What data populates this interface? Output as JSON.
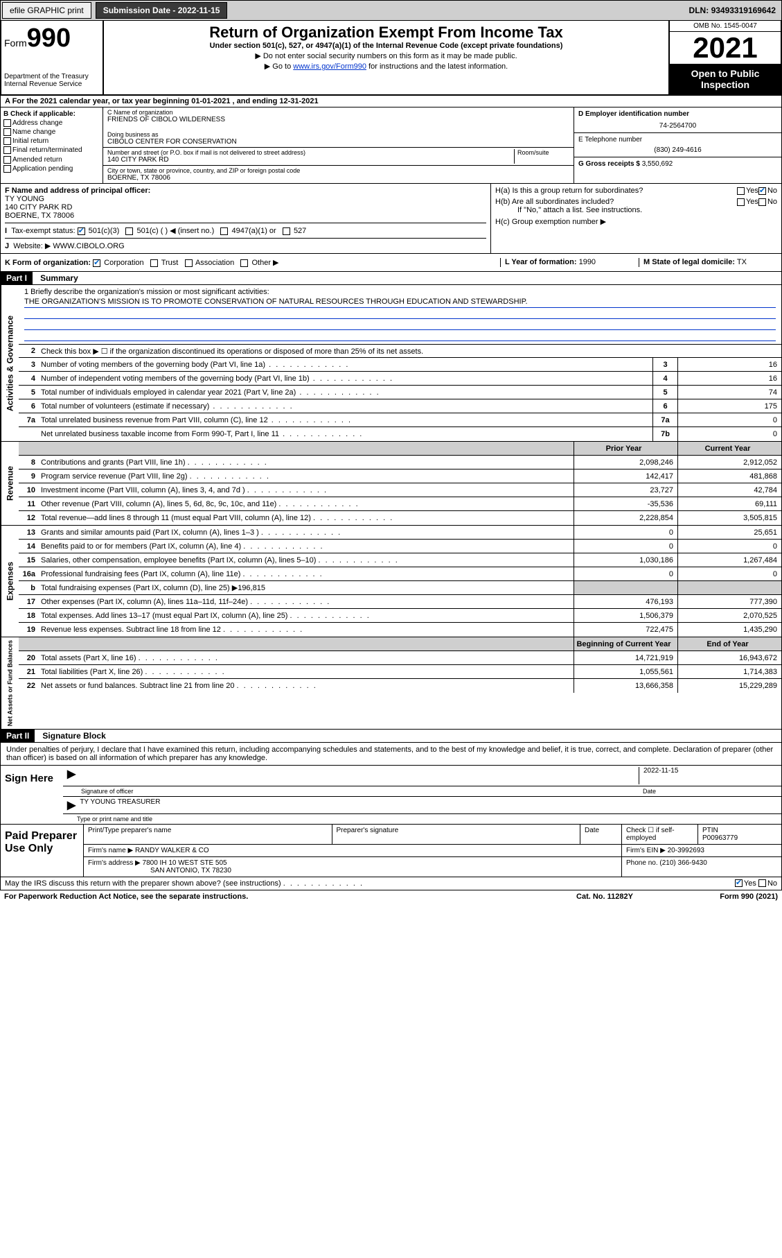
{
  "topbar": {
    "efile": "efile GRAPHIC print",
    "submission_label": "Submission Date",
    "submission_date": "2022-11-15",
    "dln_label": "DLN:",
    "dln": "93493319169642"
  },
  "header": {
    "form_label": "Form",
    "form_num": "990",
    "dept": "Department of the Treasury",
    "irs": "Internal Revenue Service",
    "title": "Return of Organization Exempt From Income Tax",
    "subtitle": "Under section 501(c), 527, or 4947(a)(1) of the Internal Revenue Code (except private foundations)",
    "note1": "▶ Do not enter social security numbers on this form as it may be made public.",
    "note2_pre": "▶ Go to ",
    "note2_link": "www.irs.gov/Form990",
    "note2_post": " for instructions and the latest information.",
    "omb": "OMB No. 1545-0047",
    "year": "2021",
    "open": "Open to Public Inspection"
  },
  "period": {
    "a_label": "A For the 2021 calendar year, or tax year beginning ",
    "begin": "01-01-2021",
    "mid": " , and ending ",
    "end": "12-31-2021"
  },
  "colB": {
    "title": "B Check if applicable:",
    "opts": [
      "Address change",
      "Name change",
      "Initial return",
      "Final return/terminated",
      "Amended return",
      "Application pending"
    ]
  },
  "colC": {
    "name_label": "C Name of organization",
    "name": "FRIENDS OF CIBOLO WILDERNESS",
    "dba_label": "Doing business as",
    "dba": "CIBOLO CENTER FOR CONSERVATION",
    "street_label": "Number and street (or P.O. box if mail is not delivered to street address)",
    "room_label": "Room/suite",
    "street": "140 CITY PARK RD",
    "city_label": "City or town, state or province, country, and ZIP or foreign postal code",
    "city": "BOERNE, TX  78006"
  },
  "colD": {
    "ein_label": "D Employer identification number",
    "ein": "74-2564700",
    "phone_label": "E Telephone number",
    "phone": "(830) 249-4616",
    "gross_label": "G Gross receipts $",
    "gross": "3,550,692"
  },
  "rowF": {
    "f_label": "F Name and address of principal officer:",
    "f_name": "TY YOUNG",
    "f_addr1": "140 CITY PARK RD",
    "f_addr2": "BOERNE, TX  78006",
    "i_label": "Tax-exempt status:",
    "i_501c3": "501(c)(3)",
    "i_501c": "501(c) (  ) ◀ (insert no.)",
    "i_4947": "4947(a)(1) or",
    "i_527": "527",
    "j_label": "Website: ▶",
    "j_site": "WWW.CIBOLO.ORG"
  },
  "rowH": {
    "ha": "H(a)  Is this a group return for subordinates?",
    "hb": "H(b)  Are all subordinates included?",
    "hb_note": "If \"No,\" attach a list. See instructions.",
    "hc": "H(c)  Group exemption number ▶",
    "yes": "Yes",
    "no": "No"
  },
  "rowK": {
    "k_label": "K Form of organization:",
    "corp": "Corporation",
    "trust": "Trust",
    "assoc": "Association",
    "other": "Other ▶",
    "l_label": "L Year of formation:",
    "l_val": "1990",
    "m_label": "M State of legal domicile:",
    "m_val": "TX"
  },
  "part1": {
    "hdr": "Part I",
    "title": "Summary",
    "q1_label": "1  Briefly describe the organization's mission or most significant activities:",
    "q1_text": "THE ORGANIZATION'S MISSION IS TO PROMOTE CONSERVATION OF NATURAL RESOURCES THROUGH EDUCATION AND STEWARDSHIP.",
    "q2": "Check this box ▶ ☐  if the organization discontinued its operations or disposed of more than 25% of its net assets.",
    "governance_rows": [
      {
        "n": "3",
        "d": "Number of voting members of the governing body (Part VI, line 1a)",
        "box": "3",
        "v": "16"
      },
      {
        "n": "4",
        "d": "Number of independent voting members of the governing body (Part VI, line 1b)",
        "box": "4",
        "v": "16"
      },
      {
        "n": "5",
        "d": "Total number of individuals employed in calendar year 2021 (Part V, line 2a)",
        "box": "5",
        "v": "74"
      },
      {
        "n": "6",
        "d": "Total number of volunteers (estimate if necessary)",
        "box": "6",
        "v": "175"
      },
      {
        "n": "7a",
        "d": "Total unrelated business revenue from Part VIII, column (C), line 12",
        "box": "7a",
        "v": "0"
      },
      {
        "n": "",
        "d": "Net unrelated business taxable income from Form 990-T, Part I, line 11",
        "box": "7b",
        "v": "0"
      }
    ],
    "col_hdr_prior": "Prior Year",
    "col_hdr_current": "Current Year",
    "revenue_rows": [
      {
        "n": "8",
        "d": "Contributions and grants (Part VIII, line 1h)",
        "p": "2,098,246",
        "c": "2,912,052"
      },
      {
        "n": "9",
        "d": "Program service revenue (Part VIII, line 2g)",
        "p": "142,417",
        "c": "481,868"
      },
      {
        "n": "10",
        "d": "Investment income (Part VIII, column (A), lines 3, 4, and 7d )",
        "p": "23,727",
        "c": "42,784"
      },
      {
        "n": "11",
        "d": "Other revenue (Part VIII, column (A), lines 5, 6d, 8c, 9c, 10c, and 11e)",
        "p": "-35,536",
        "c": "69,111"
      },
      {
        "n": "12",
        "d": "Total revenue—add lines 8 through 11 (must equal Part VIII, column (A), line 12)",
        "p": "2,228,854",
        "c": "3,505,815"
      }
    ],
    "expense_rows": [
      {
        "n": "13",
        "d": "Grants and similar amounts paid (Part IX, column (A), lines 1–3 )",
        "p": "0",
        "c": "25,651"
      },
      {
        "n": "14",
        "d": "Benefits paid to or for members (Part IX, column (A), line 4)",
        "p": "0",
        "c": "0"
      },
      {
        "n": "15",
        "d": "Salaries, other compensation, employee benefits (Part IX, column (A), lines 5–10)",
        "p": "1,030,186",
        "c": "1,267,484"
      },
      {
        "n": "16a",
        "d": "Professional fundraising fees (Part IX, column (A), line 11e)",
        "p": "0",
        "c": "0"
      },
      {
        "n": "b",
        "d": "Total fundraising expenses (Part IX, column (D), line 25) ▶196,815",
        "p": "",
        "c": "",
        "shaded": true
      },
      {
        "n": "17",
        "d": "Other expenses (Part IX, column (A), lines 11a–11d, 11f–24e)",
        "p": "476,193",
        "c": "777,390"
      },
      {
        "n": "18",
        "d": "Total expenses. Add lines 13–17 (must equal Part IX, column (A), line 25)",
        "p": "1,506,379",
        "c": "2,070,525"
      },
      {
        "n": "19",
        "d": "Revenue less expenses. Subtract line 18 from line 12",
        "p": "722,475",
        "c": "1,435,290"
      }
    ],
    "col_hdr_begin": "Beginning of Current Year",
    "col_hdr_end": "End of Year",
    "asset_rows": [
      {
        "n": "20",
        "d": "Total assets (Part X, line 16)",
        "p": "14,721,919",
        "c": "16,943,672"
      },
      {
        "n": "21",
        "d": "Total liabilities (Part X, line 26)",
        "p": "1,055,561",
        "c": "1,714,383"
      },
      {
        "n": "22",
        "d": "Net assets or fund balances. Subtract line 21 from line 20",
        "p": "13,666,358",
        "c": "15,229,289"
      }
    ],
    "v_gov": "Activities & Governance",
    "v_rev": "Revenue",
    "v_exp": "Expenses",
    "v_net": "Net Assets or Fund Balances"
  },
  "part2": {
    "hdr": "Part II",
    "title": "Signature Block",
    "decl": "Under penalties of perjury, I declare that I have examined this return, including accompanying schedules and statements, and to the best of my knowledge and belief, it is true, correct, and complete. Declaration of preparer (other than officer) is based on all information of which preparer has any knowledge.",
    "sign_here": "Sign Here",
    "sig_officer": "Signature of officer",
    "sig_date_label": "Date",
    "sig_date": "2022-11-15",
    "sig_name": "TY YOUNG  TREASURER",
    "sig_name_label": "Type or print name and title",
    "paid_label": "Paid Preparer Use Only",
    "prep_name_label": "Print/Type preparer's name",
    "prep_sig_label": "Preparer's signature",
    "date_label": "Date",
    "check_self": "Check ☐ if self-employed",
    "ptin_label": "PTIN",
    "ptin": "P00963779",
    "firm_name_label": "Firm's name    ▶",
    "firm_name": "RANDY WALKER & CO",
    "firm_ein_label": "Firm's EIN ▶",
    "firm_ein": "20-3992693",
    "firm_addr_label": "Firm's address ▶",
    "firm_addr1": "7800 IH 10 WEST STE 505",
    "firm_addr2": "SAN ANTONIO, TX  78230",
    "firm_phone_label": "Phone no.",
    "firm_phone": "(210) 366-9430",
    "discuss": "May the IRS discuss this return with the preparer shown above? (see instructions)",
    "paperwork": "For Paperwork Reduction Act Notice, see the separate instructions.",
    "catno": "Cat. No. 11282Y",
    "formfoot": "Form 990 (2021)"
  }
}
